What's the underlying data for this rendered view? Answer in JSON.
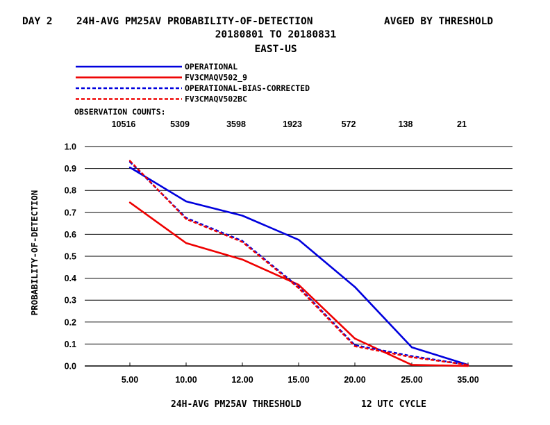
{
  "header": {
    "day": "DAY 2",
    "title": "24H-AVG PM25AV PROBABILITY-OF-DETECTION",
    "subtitle": "AVGED BY THRESHOLD",
    "date_range": "20180801 TO 20180831",
    "region": "EAST-US"
  },
  "obs_label": "OBSERVATION COUNTS:",
  "chart_data": {
    "type": "line",
    "categories": [
      "5.00",
      "10.00",
      "12.00",
      "15.00",
      "20.00",
      "25.00",
      "35.00"
    ],
    "obs_counts": [
      "10516",
      "5309",
      "3598",
      "1923",
      "572",
      "138",
      "21"
    ],
    "ylabel": "PROBABILITY-OF-DETECTION",
    "xlabel": "24H-AVG PM25AV THRESHOLD",
    "xlabel_cycle": "12 UTC CYCLE",
    "ylim": [
      0,
      1.0
    ],
    "yticks": [
      "0.0",
      "0.1",
      "0.2",
      "0.3",
      "0.4",
      "0.5",
      "0.6",
      "0.7",
      "0.8",
      "0.9",
      "1.0"
    ],
    "grid": true,
    "legend_position": "top-left",
    "series": [
      {
        "name": "OPERATIONAL",
        "color": "#0000dd",
        "dash": "solid",
        "values": [
          0.905,
          0.75,
          0.685,
          0.575,
          0.36,
          0.085,
          0.005
        ]
      },
      {
        "name": "FV3CMAQV502_9",
        "color": "#ee0000",
        "dash": "solid",
        "values": [
          0.745,
          0.56,
          0.485,
          0.37,
          0.125,
          0.005,
          0.0
        ]
      },
      {
        "name": "OPERATIONAL-BIAS-CORRECTED",
        "color": "#0000dd",
        "dash": "dashed",
        "values": [
          0.93,
          0.675,
          0.57,
          0.36,
          0.095,
          0.045,
          0.005
        ]
      },
      {
        "name": "FV3CMAQV502BC",
        "color": "#ee0000",
        "dash": "dashed",
        "values": [
          0.935,
          0.67,
          0.565,
          0.355,
          0.09,
          0.04,
          0.005
        ]
      }
    ]
  }
}
